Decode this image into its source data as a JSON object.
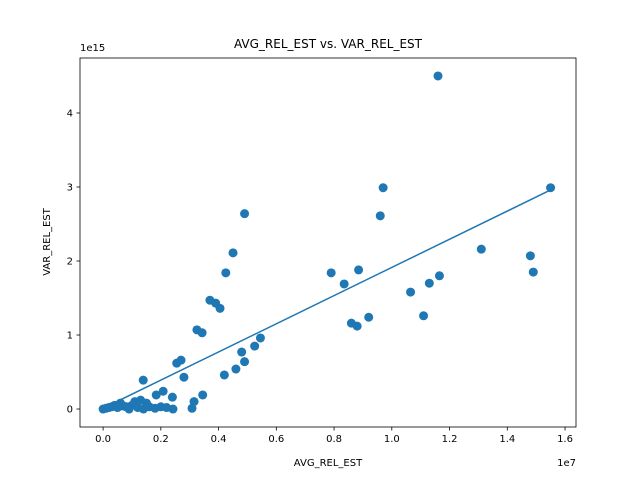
{
  "chart_data": {
    "type": "scatter",
    "title": "AVG_REL_EST vs. VAR_REL_EST",
    "x_label": "AVG_REL_EST",
    "y_label": "VAR_REL_EST",
    "x_offset": "1e7",
    "y_offset": "1e15",
    "color": "#1f77b4",
    "x": [
      11600000,
      15500000,
      9700000,
      4900000,
      9600000,
      13100000,
      4500000,
      14800000,
      14900000,
      4250000,
      7900000,
      8850000,
      11650000,
      8350000,
      11300000,
      10650000,
      3700000,
      3900000,
      4050000,
      8600000,
      8800000,
      9200000,
      11100000,
      3250000,
      3430000,
      5450000,
      5250000,
      4800000,
      4900000,
      2700000,
      2550000,
      4600000,
      4200000,
      2800000,
      1390000,
      3450000,
      3150000,
      3080000,
      2080000,
      1840000,
      2400000,
      2420000,
      0,
      100000,
      200000,
      300000,
      400000,
      500000,
      600000,
      700000,
      800000,
      1000000,
      1100000,
      1200000,
      1300000,
      1500000,
      1600000,
      1800000,
      2000000,
      2200000,
      900000,
      1400000
    ],
    "y": [
      4500000000000000.0,
      2990000000000000.0,
      2990000000000000.0,
      2640000000000000.0,
      2610000000000000.0,
      2160000000000000.0,
      2110000000000000.0,
      2070000000000000.0,
      1850000000000000.0,
      1840000000000000.0,
      1840000000000000.0,
      1880000000000000.0,
      1800000000000000.0,
      1690000000000000.0,
      1700000000000000.0,
      1580000000000000.0,
      1470000000000000.0,
      1430000000000000.0,
      1360000000000000.0,
      1160000000000000.0,
      1120000000000000.0,
      1240000000000000.0,
      1260000000000000.0,
      1070000000000000.0,
      1030000000000000.0,
      960000000000000.0,
      850000000000000.0,
      770000000000000.0,
      640000000000000.0,
      660000000000000.0,
      620000000000000.0,
      540000000000000.0,
      460000000000000.0,
      430000000000000.0,
      390000000000000.0,
      190000000000000.0,
      100000000000000.0,
      10000000000000.0,
      240000000000000.0,
      190000000000000.0,
      160000000000000.0,
      0,
      0,
      10000000000000.0,
      20000000000000.0,
      30000000000000.0,
      50000000000000.0,
      20000000000000.0,
      80000000000000.0,
      40000000000000.0,
      30000000000000.0,
      50000000000000.0,
      100000000000000.0,
      20000000000000.0,
      120000000000000.0,
      80000000000000.0,
      30000000000000.0,
      10000000000000.0,
      30000000000000.0,
      20000000000000.0,
      0,
      0
    ],
    "trendline": {
      "x": [
        0,
        15500000
      ],
      "y": [
        10000000000000.0,
        2960000000000000.0
      ]
    },
    "xlim": [
      -800000,
      16380000
    ],
    "ylim": [
      -243000000000000.0,
      4743000000000000.0
    ],
    "xticks": [
      {
        "value": 0,
        "label": "0.0"
      },
      {
        "value": 2000000,
        "label": "0.2"
      },
      {
        "value": 4000000,
        "label": "0.4"
      },
      {
        "value": 6000000,
        "label": "0.6"
      },
      {
        "value": 8000000,
        "label": "0.8"
      },
      {
        "value": 10000000,
        "label": "1.0"
      },
      {
        "value": 12000000,
        "label": "1.2"
      },
      {
        "value": 14000000,
        "label": "1.4"
      },
      {
        "value": 16000000,
        "label": "1.6"
      }
    ],
    "yticks": [
      {
        "value": 0,
        "label": "0"
      },
      {
        "value": 1000000000000000.0,
        "label": "1"
      },
      {
        "value": 2000000000000000.0,
        "label": "2"
      },
      {
        "value": 3000000000000000.0,
        "label": "3"
      },
      {
        "value": 4000000000000000.0,
        "label": "4"
      }
    ]
  }
}
